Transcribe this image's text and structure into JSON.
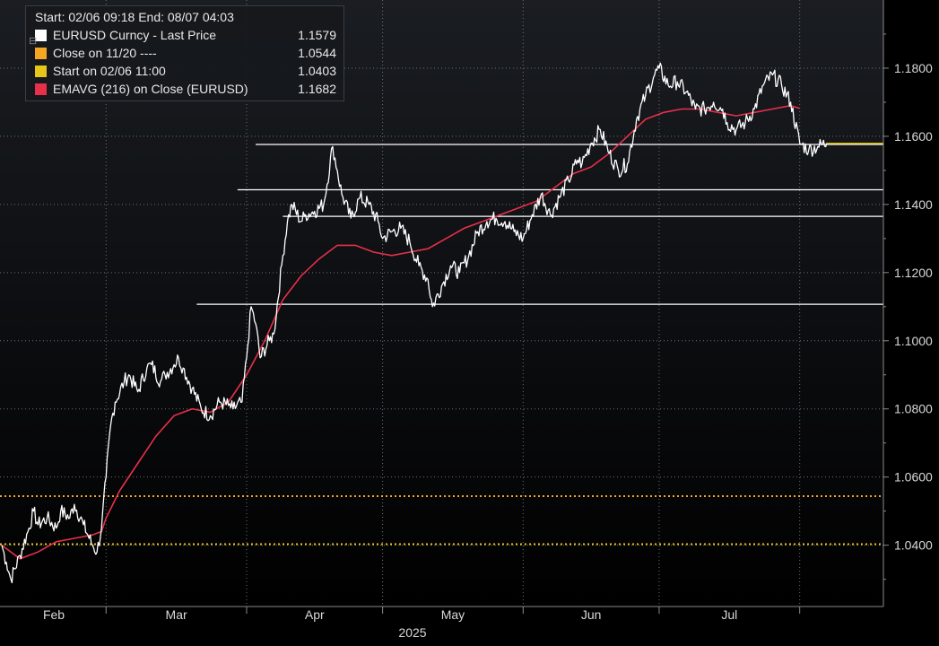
{
  "chart_data": {
    "type": "line",
    "header": {
      "start": "Start: 02/06 09:18",
      "end": "End: 08/07 04:03"
    },
    "legend": [
      {
        "label": "EURUSD Curncy - Last Price",
        "value": "1.1579",
        "color": "#ffffff"
      },
      {
        "label": "Close on 11/20 ----",
        "value": "1.0544",
        "color": "#f5a623"
      },
      {
        "label": "Start on 02/06 11:00",
        "value": "1.0403",
        "color": "#e6c619"
      },
      {
        "label": "EMAVG (216)  on Close (EURUSD)",
        "value": "1.1682",
        "color": "#e8304a"
      }
    ],
    "y_ticks": [
      "1.0400",
      "1.0600",
      "1.0800",
      "1.1000",
      "1.1200",
      "1.1400",
      "1.1600",
      "1.1800"
    ],
    "y_tick_values": [
      1.04,
      1.06,
      1.08,
      1.1,
      1.12,
      1.14,
      1.16,
      1.18
    ],
    "ylim": [
      1.022,
      1.2
    ],
    "x_ticks": [
      "Feb",
      "Mar",
      "Apr",
      "May",
      "Jun",
      "Jul"
    ],
    "x_year_label": "2025",
    "x_range": [
      "2025-02-06",
      "2025-08-07"
    ],
    "month_starts": [
      "2025-02-01",
      "2025-03-01",
      "2025-04-01",
      "2025-05-01",
      "2025-06-01",
      "2025-07-01",
      "2025-08-01"
    ],
    "horizontal_lines": [
      {
        "name": "close-11-20",
        "value": 1.0544,
        "color": "#f5a623",
        "style": "dotted"
      },
      {
        "name": "start-02-06",
        "value": 1.0403,
        "color": "#e6c619",
        "style": "dotted"
      },
      {
        "name": "level-1",
        "value": 1.1576,
        "start": "2025-04-03",
        "color": "#ffffff",
        "style": "solid"
      },
      {
        "name": "level-2",
        "value": 1.1443,
        "start": "2025-03-30",
        "color": "#ffffff",
        "style": "solid"
      },
      {
        "name": "level-3",
        "value": 1.1365,
        "start": "2025-04-09",
        "color": "#ffffff",
        "style": "solid"
      },
      {
        "name": "level-4",
        "value": 1.1107,
        "start": "2025-03-21",
        "color": "#ffffff",
        "style": "solid"
      }
    ],
    "series": [
      {
        "name": "EURUSD Curncy - Last Price",
        "color": "#ffffff",
        "x": [
          "2025-02-06",
          "2025-02-07",
          "2025-02-08",
          "2025-02-10",
          "2025-02-12",
          "2025-02-13",
          "2025-02-14",
          "2025-02-16",
          "2025-02-18",
          "2025-02-19",
          "2025-02-21",
          "2025-02-22",
          "2025-02-24",
          "2025-02-26",
          "2025-02-27",
          "2025-02-28",
          "2025-03-01",
          "2025-03-02",
          "2025-03-03",
          "2025-03-05",
          "2025-03-06",
          "2025-03-08",
          "2025-03-10",
          "2025-03-11",
          "2025-03-13",
          "2025-03-14",
          "2025-03-16",
          "2025-03-17",
          "2025-03-18",
          "2025-03-20",
          "2025-03-22",
          "2025-03-24",
          "2025-03-26",
          "2025-03-28",
          "2025-03-29",
          "2025-03-31",
          "2025-04-01",
          "2025-04-02",
          "2025-04-03",
          "2025-04-04",
          "2025-04-06",
          "2025-04-07",
          "2025-04-09",
          "2025-04-10",
          "2025-04-11",
          "2025-04-13",
          "2025-04-14",
          "2025-04-16",
          "2025-04-18",
          "2025-04-20",
          "2025-04-21",
          "2025-04-22",
          "2025-04-24",
          "2025-04-26",
          "2025-04-28",
          "2025-04-30",
          "2025-05-01",
          "2025-05-03",
          "2025-05-05",
          "2025-05-07",
          "2025-05-09",
          "2025-05-11",
          "2025-05-12",
          "2025-05-14",
          "2025-05-16",
          "2025-05-18",
          "2025-05-20",
          "2025-05-22",
          "2025-05-24",
          "2025-05-26",
          "2025-05-28",
          "2025-05-30",
          "2025-06-01",
          "2025-06-03",
          "2025-06-05",
          "2025-06-07",
          "2025-06-09",
          "2025-06-11",
          "2025-06-13",
          "2025-06-14",
          "2025-06-16",
          "2025-06-18",
          "2025-06-20",
          "2025-06-22",
          "2025-06-24",
          "2025-06-26",
          "2025-06-28",
          "2025-06-30",
          "2025-07-01",
          "2025-07-03",
          "2025-07-05",
          "2025-07-07",
          "2025-07-09",
          "2025-07-11",
          "2025-07-13",
          "2025-07-15",
          "2025-07-16",
          "2025-07-18",
          "2025-07-20",
          "2025-07-22",
          "2025-07-24",
          "2025-07-26",
          "2025-07-28",
          "2025-07-30",
          "2025-08-01",
          "2025-08-03",
          "2025-08-05",
          "2025-08-07"
        ],
        "values": [
          1.04,
          1.035,
          1.03,
          1.037,
          1.045,
          1.05,
          1.046,
          1.048,
          1.045,
          1.05,
          1.048,
          1.052,
          1.046,
          1.04,
          1.038,
          1.045,
          1.06,
          1.075,
          1.082,
          1.088,
          1.09,
          1.085,
          1.092,
          1.093,
          1.088,
          1.09,
          1.093,
          1.095,
          1.092,
          1.086,
          1.08,
          1.078,
          1.082,
          1.081,
          1.08,
          1.082,
          1.095,
          1.11,
          1.105,
          1.095,
          1.1,
          1.102,
          1.125,
          1.135,
          1.14,
          1.135,
          1.137,
          1.138,
          1.14,
          1.157,
          1.15,
          1.143,
          1.136,
          1.142,
          1.14,
          1.135,
          1.13,
          1.132,
          1.133,
          1.129,
          1.122,
          1.118,
          1.11,
          1.116,
          1.122,
          1.12,
          1.125,
          1.132,
          1.135,
          1.136,
          1.135,
          1.132,
          1.13,
          1.137,
          1.143,
          1.137,
          1.142,
          1.147,
          1.153,
          1.152,
          1.158,
          1.162,
          1.155,
          1.15,
          1.152,
          1.165,
          1.172,
          1.178,
          1.18,
          1.175,
          1.176,
          1.173,
          1.168,
          1.168,
          1.17,
          1.168,
          1.164,
          1.162,
          1.164,
          1.168,
          1.175,
          1.178,
          1.175,
          1.17,
          1.158,
          1.156,
          1.157,
          1.158
        ]
      },
      {
        "name": "EMAVG (216)  on Close (EURUSD)",
        "color": "#e8304a",
        "x": [
          "2025-02-06",
          "2025-02-10",
          "2025-02-14",
          "2025-02-18",
          "2025-02-22",
          "2025-02-26",
          "2025-02-28",
          "2025-03-01",
          "2025-03-04",
          "2025-03-08",
          "2025-03-12",
          "2025-03-16",
          "2025-03-20",
          "2025-03-24",
          "2025-03-28",
          "2025-04-01",
          "2025-04-05",
          "2025-04-09",
          "2025-04-13",
          "2025-04-17",
          "2025-04-21",
          "2025-04-25",
          "2025-04-29",
          "2025-05-03",
          "2025-05-07",
          "2025-05-11",
          "2025-05-15",
          "2025-05-19",
          "2025-05-23",
          "2025-05-27",
          "2025-05-31",
          "2025-06-04",
          "2025-06-08",
          "2025-06-12",
          "2025-06-16",
          "2025-06-20",
          "2025-06-24",
          "2025-06-28",
          "2025-07-02",
          "2025-07-06",
          "2025-07-10",
          "2025-07-14",
          "2025-07-18",
          "2025-07-22",
          "2025-07-26",
          "2025-07-30",
          "2025-08-01"
        ],
        "values": [
          1.04,
          1.036,
          1.038,
          1.041,
          1.042,
          1.043,
          1.044,
          1.048,
          1.056,
          1.064,
          1.072,
          1.078,
          1.08,
          1.079,
          1.082,
          1.09,
          1.1,
          1.112,
          1.119,
          1.124,
          1.128,
          1.128,
          1.126,
          1.125,
          1.126,
          1.127,
          1.13,
          1.133,
          1.135,
          1.137,
          1.139,
          1.141,
          1.145,
          1.149,
          1.151,
          1.155,
          1.16,
          1.165,
          1.167,
          1.168,
          1.168,
          1.167,
          1.166,
          1.167,
          1.168,
          1.169,
          1.1682
        ]
      }
    ]
  }
}
